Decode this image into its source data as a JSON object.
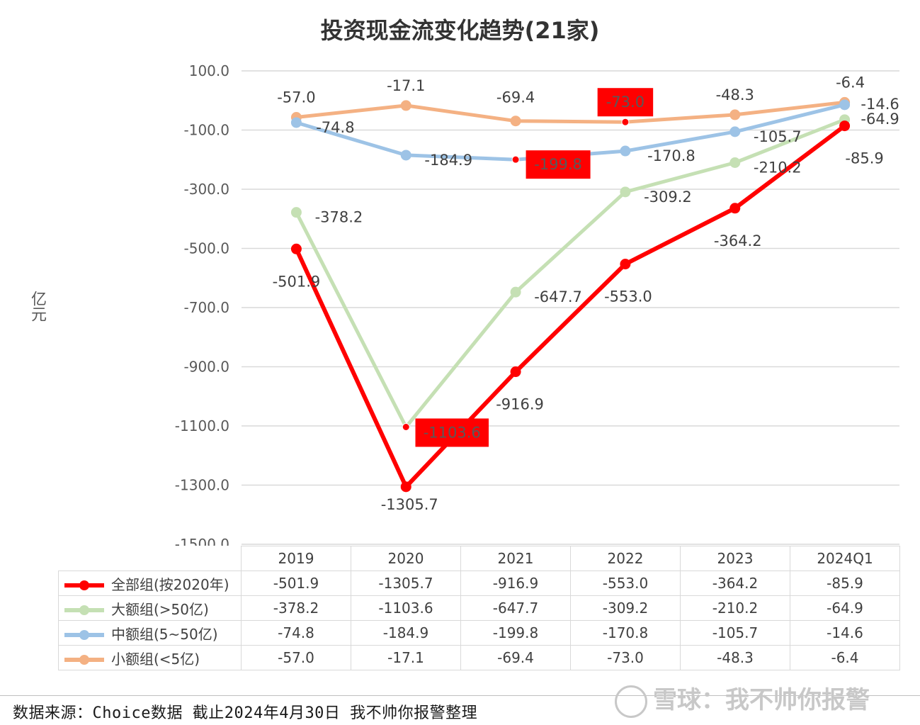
{
  "chart_data": {
    "type": "line",
    "title": "投资现金流变化趋势(21家)",
    "ylabel": "亿元",
    "ylim": [
      -1500,
      100
    ],
    "yticks": [
      "100.0",
      "-100.0",
      "-300.0",
      "-500.0",
      "-700.0",
      "-900.0",
      "-1100.0",
      "-1300.0",
      "-1500.0"
    ],
    "ytick_values": [
      100,
      -100,
      -300,
      -500,
      -700,
      -900,
      -1100,
      -1300,
      -1500
    ],
    "categories": [
      "2019",
      "2020",
      "2021",
      "2022",
      "2023",
      "2024Q1"
    ],
    "grid": true,
    "legend": "data-table",
    "series": [
      {
        "name": "全部组(按2020年)",
        "color": "#ff0000",
        "values": [
          -501.9,
          -1305.7,
          -916.9,
          -553.0,
          -364.2,
          -85.9
        ],
        "labels": [
          "-501.9",
          "-1305.7",
          "-916.9",
          "-553.0",
          "-364.2",
          "-85.9"
        ],
        "highlight": [
          false,
          false,
          false,
          false,
          false,
          false
        ]
      },
      {
        "name": "大额组(>50亿)",
        "color": "#c5e0b4",
        "values": [
          -378.2,
          -1103.6,
          -647.7,
          -309.2,
          -210.2,
          -64.9
        ],
        "labels": [
          "-378.2",
          "-1103.6",
          "-647.7",
          "-309.2",
          "-210.2",
          "-64.9"
        ],
        "highlight": [
          false,
          true,
          false,
          false,
          false,
          false
        ]
      },
      {
        "name": "中额组(5~50亿)",
        "color": "#9dc3e6",
        "values": [
          -74.8,
          -184.9,
          -199.8,
          -170.8,
          -105.7,
          -14.6
        ],
        "labels": [
          "-74.8",
          "-184.9",
          "-199.8",
          "-170.8",
          "-105.7",
          "-14.6"
        ],
        "highlight": [
          false,
          false,
          true,
          false,
          false,
          false
        ]
      },
      {
        "name": "小额组(<5亿)",
        "color": "#f4b183",
        "values": [
          -57.0,
          -17.1,
          -69.4,
          -73.0,
          -48.3,
          -6.4
        ],
        "labels": [
          "-57.0",
          "-17.1",
          "-69.4",
          "-73.0",
          "-48.3",
          "-6.4"
        ],
        "highlight": [
          false,
          false,
          false,
          true,
          false,
          false
        ]
      }
    ],
    "highlight_color": "#ff0000"
  },
  "footer": {
    "source": "数据来源：Choice数据  截止2024年4月30日 我不帅你报警整理",
    "watermark": "雪球：我不帅你报警"
  }
}
